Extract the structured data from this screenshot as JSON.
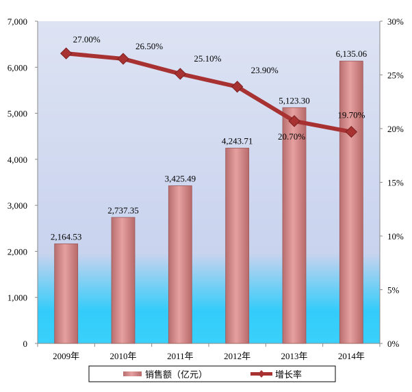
{
  "chart_data": {
    "type": "bar",
    "categories": [
      "2009年",
      "2010年",
      "2011年",
      "2012年",
      "2013年",
      "2014年"
    ],
    "series": [
      {
        "name": "销售额（亿元）",
        "type": "bar",
        "axis": "left",
        "values": [
          2164.53,
          2737.35,
          3425.49,
          4243.71,
          5123.3,
          6135.06
        ],
        "labels": [
          "2,164.53",
          "2,737.35",
          "3,425.49",
          "4,243.71",
          "5,123.30",
          "6,135.06"
        ],
        "color": "#d98a8a"
      },
      {
        "name": "增长率",
        "type": "line",
        "axis": "right",
        "values": [
          27.0,
          26.5,
          25.1,
          23.9,
          20.7,
          19.7
        ],
        "labels": [
          "27.00%",
          "26.50%",
          "25.10%",
          "23.90%",
          "20.70%",
          "19.70%"
        ],
        "color": "#a83232"
      }
    ],
    "y_left": {
      "ylim": [
        0,
        7000
      ],
      "ticks": [
        "0",
        "1,000",
        "2,000",
        "3,000",
        "4,000",
        "5,000",
        "6,000",
        "7,000"
      ]
    },
    "y_right": {
      "ylim": [
        0,
        30
      ],
      "ticks": [
        "0%",
        "5%",
        "10%",
        "15%",
        "20%",
        "25%",
        "30%"
      ]
    },
    "legend": "bottom",
    "grid": false
  }
}
